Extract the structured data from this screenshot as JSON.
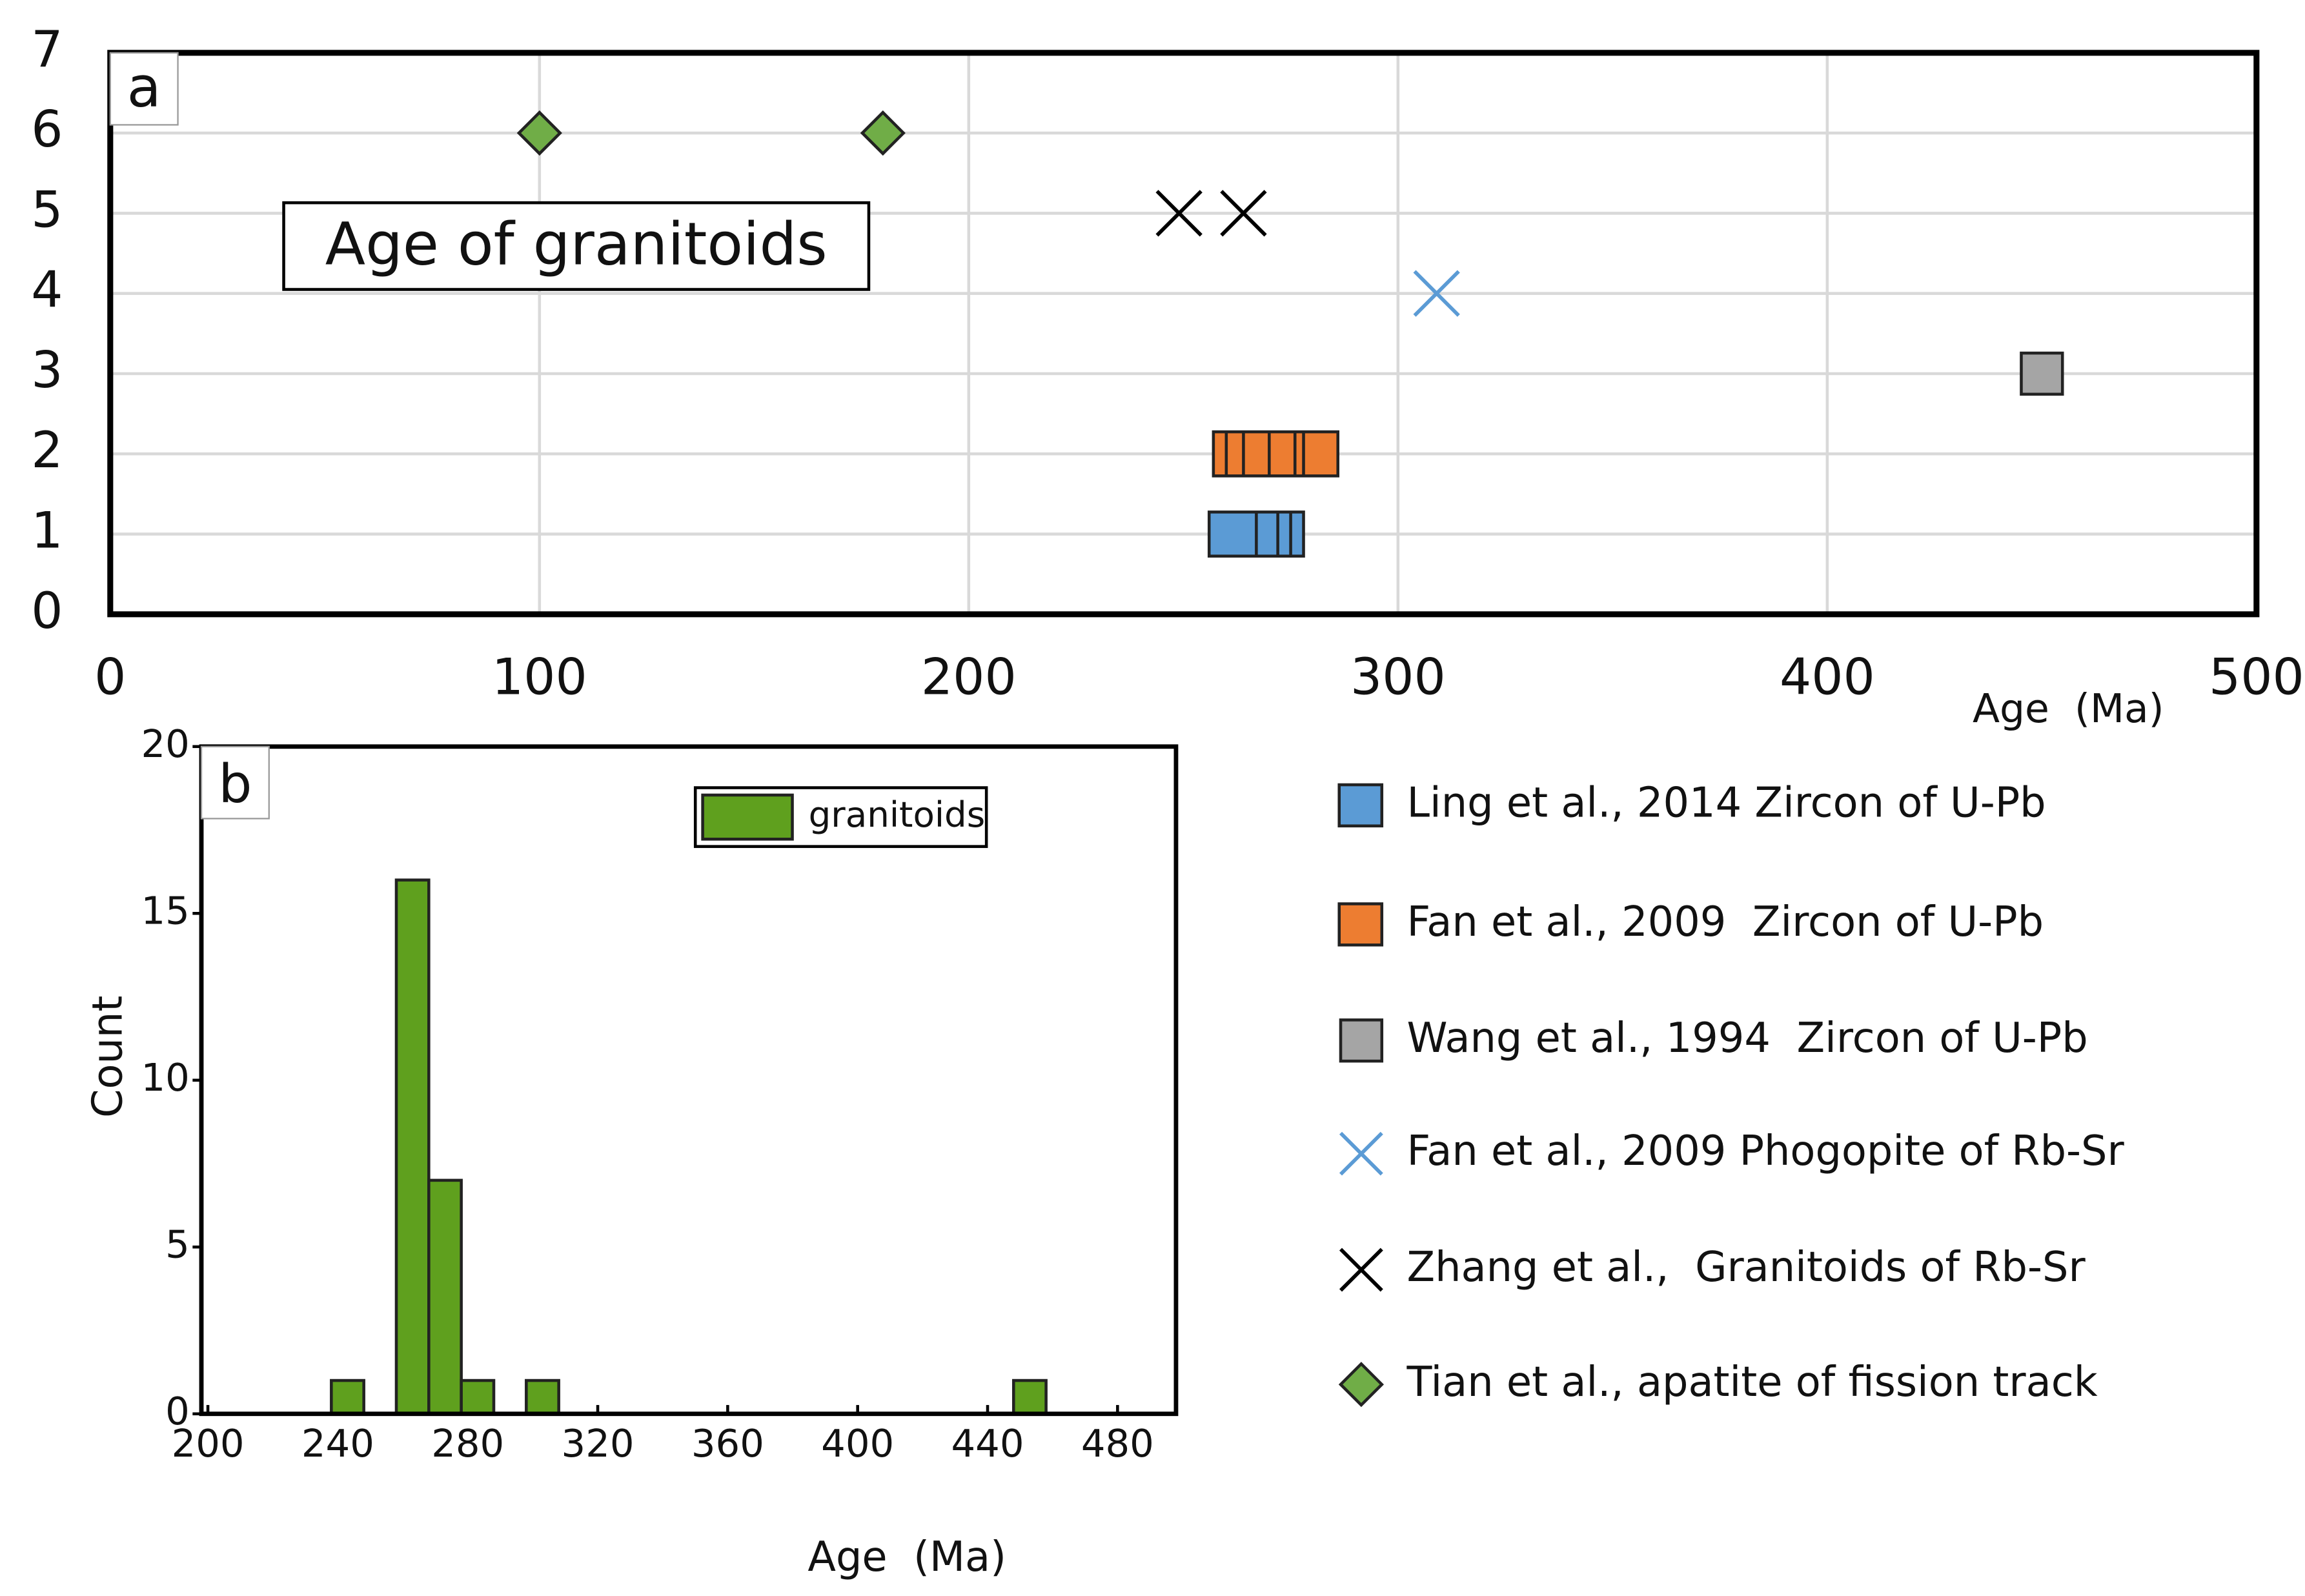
{
  "chart_data": [
    {
      "type": "scatter",
      "panel": "a",
      "annotation": "Age of granitoids",
      "x_label": "Age  (Ma)",
      "xlim": [
        0,
        500
      ],
      "xticks": [
        0,
        100,
        200,
        300,
        400,
        500
      ],
      "ylim": [
        0,
        7
      ],
      "yticks": [
        0,
        1,
        2,
        3,
        4,
        5,
        6,
        7
      ],
      "grid": true,
      "series": [
        {
          "name": "Ling et al., 2014 Zircon of U-Pb",
          "color": "#5b9bd5",
          "marker": "range",
          "x": [
            256,
            267,
            272,
            275,
            278
          ],
          "values": [
            1,
            1,
            1,
            1,
            1
          ]
        },
        {
          "name": "Fan et al., 2009  Zircon of U-Pb",
          "color": "#ed7d31",
          "marker": "range",
          "x": [
            257,
            260,
            264,
            270,
            276,
            278,
            286
          ],
          "values": [
            2,
            2,
            2,
            2,
            2,
            2,
            2
          ]
        },
        {
          "name": "Wang et al., 1994  Zircon of U-Pb",
          "color": "#a5a5a5",
          "marker": "square",
          "x": [
            450
          ],
          "values": [
            3
          ]
        },
        {
          "name": "Fan et al., 2009 Phogopite of Rb-Sr",
          "color": "#5b9bd5",
          "marker": "x",
          "x": [
            309
          ],
          "values": [
            4
          ]
        },
        {
          "name": "Zhang et al.,  Granitoids of Rb-Sr",
          "color": "#000000",
          "marker": "x",
          "x": [
            249,
            264
          ],
          "values": [
            5,
            5
          ]
        },
        {
          "name": "Tian et al., apatite of fission track",
          "color": "#70ad47",
          "marker": "diamond",
          "x": [
            100,
            180
          ],
          "values": [
            6,
            6
          ]
        }
      ]
    },
    {
      "type": "histogram",
      "panel": "b",
      "x_label": "Age  (Ma)",
      "y_label": "Count",
      "bins": [
        238,
        248,
        258,
        268,
        278,
        288,
        298,
        308,
        318,
        328,
        338,
        348,
        358,
        368,
        378,
        388,
        398,
        408,
        418,
        428,
        438,
        448,
        458
      ],
      "series": [
        {
          "name": "granitoids",
          "color": "#5fa01e",
          "values": [
            1,
            0,
            16,
            7,
            1,
            0,
            1,
            0,
            0,
            0,
            0,
            0,
            0,
            0,
            0,
            0,
            0,
            0,
            0,
            0,
            0,
            1
          ]
        }
      ],
      "xlim": [
        198,
        498
      ],
      "xticks": [
        200,
        240,
        280,
        320,
        360,
        400,
        440,
        480
      ],
      "ylim": [
        0,
        20
      ],
      "yticks": [
        0,
        5,
        10,
        15,
        20
      ]
    }
  ]
}
